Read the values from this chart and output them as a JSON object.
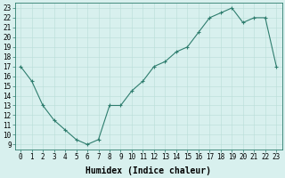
{
  "x": [
    0,
    1,
    2,
    3,
    4,
    5,
    6,
    7,
    8,
    9,
    10,
    11,
    12,
    13,
    14,
    15,
    16,
    17,
    18,
    19,
    20,
    21,
    22,
    23
  ],
  "y": [
    17,
    15.5,
    13,
    11.5,
    10.5,
    9.5,
    9,
    9.5,
    13,
    13,
    14.5,
    15.5,
    17,
    17.5,
    18.5,
    19,
    20.5,
    22,
    22.5,
    23,
    21.5,
    22,
    22,
    17
  ],
  "line_color": "#2e7d6e",
  "marker": "+",
  "marker_size": 3,
  "bg_color": "#d8f0ee",
  "grid_color": "#b8ddd8",
  "xlabel": "Humidex (Indice chaleur)",
  "ylabel": "",
  "xlim": [
    -0.5,
    23.5
  ],
  "ylim": [
    8.5,
    23.5
  ],
  "xtick_labels": [
    "0",
    "1",
    "2",
    "3",
    "4",
    "5",
    "6",
    "7",
    "8",
    "9",
    "10",
    "11",
    "12",
    "13",
    "14",
    "15",
    "16",
    "17",
    "18",
    "19",
    "20",
    "21",
    "22",
    "23"
  ],
  "ytick_labels": [
    "9",
    "10",
    "11",
    "12",
    "13",
    "14",
    "15",
    "16",
    "17",
    "18",
    "19",
    "20",
    "21",
    "22",
    "23"
  ],
  "ytick_values": [
    9,
    10,
    11,
    12,
    13,
    14,
    15,
    16,
    17,
    18,
    19,
    20,
    21,
    22,
    23
  ],
  "xtick_values": [
    0,
    1,
    2,
    3,
    4,
    5,
    6,
    7,
    8,
    9,
    10,
    11,
    12,
    13,
    14,
    15,
    16,
    17,
    18,
    19,
    20,
    21,
    22,
    23
  ],
  "label_fontsize": 7,
  "tick_fontsize": 5.5
}
